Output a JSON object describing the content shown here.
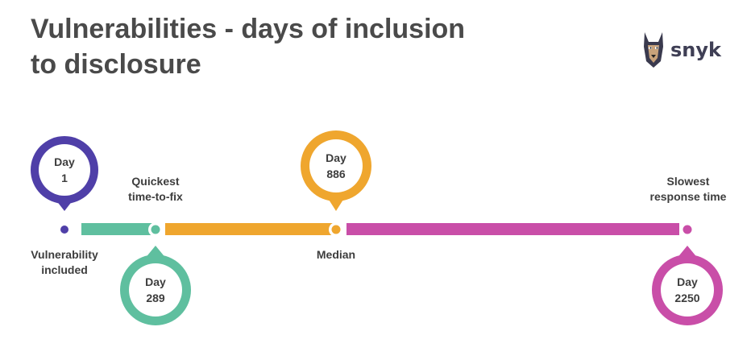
{
  "title": {
    "line1": "Vulnerabilities - days of inclusion",
    "line2": "to disclosure"
  },
  "logo": {
    "text": "snyk",
    "icon": "doberman-dog-icon"
  },
  "milestones": [
    {
      "day_label": "Day",
      "day_value": "1",
      "caption_line1": "Vulnerability",
      "caption_line2": "included",
      "color": "#4f3fa8"
    },
    {
      "day_label": "Day",
      "day_value": "289",
      "caption_line1": "Quickest",
      "caption_line2": "time-to-fix",
      "color": "#5fbf9f"
    },
    {
      "day_label": "Day",
      "day_value": "886",
      "caption_line1": "Median",
      "caption_line2": "",
      "color": "#efa62e"
    },
    {
      "day_label": "Day",
      "day_value": "2250",
      "caption_line1": "Slowest",
      "caption_line2": "response time",
      "color": "#c94ea8"
    }
  ]
}
